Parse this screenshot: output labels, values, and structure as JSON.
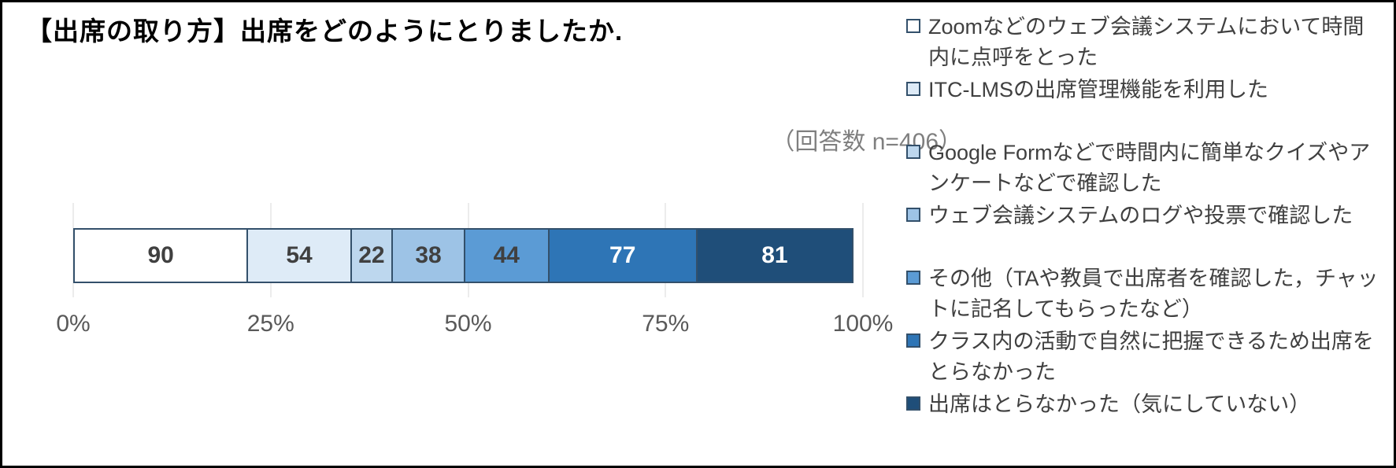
{
  "chart_data": {
    "type": "bar",
    "stacked": true,
    "orientation": "horizontal",
    "title": "【出席の取り方】出席をどのようにとりましたか.",
    "annotation": "（回答数 n=406）",
    "n_total": 406,
    "x_ticks": [
      "0%",
      "25%",
      "50%",
      "75%",
      "100%"
    ],
    "xlim_percent": [
      0,
      100
    ],
    "grid": true,
    "legend_position": "right",
    "segment_border_color": "#33506b",
    "gridline_color": "#d9d9d9",
    "tick_label_color": "#595959",
    "annotation_color": "#7f7f7f",
    "series": [
      {
        "name": "Zoomなどのウェブ会議システムにおいて時間内に点呼をとった",
        "value": 90,
        "fill": "#ffffff",
        "label_color": "#404040"
      },
      {
        "name": "ITC-LMSの出席管理機能を利用した",
        "value": 54,
        "fill": "#deebf7",
        "label_color": "#404040"
      },
      {
        "name": "Google Formなどで時間内に簡単なクイズやアンケートなどで確認した",
        "value": 22,
        "fill": "#bdd7ee",
        "label_color": "#404040"
      },
      {
        "name": "ウェブ会議システムのログや投票で確認した",
        "value": 38,
        "fill": "#9dc3e6",
        "label_color": "#404040"
      },
      {
        "name": "その他（TAや教員で出席者を確認した，チャットに記名してもらったなど）",
        "value": 44,
        "fill": "#5b9bd5",
        "label_color": "#404040"
      },
      {
        "name": "クラス内の活動で自然に把握できるため出席をとらなかった",
        "value": 77,
        "fill": "#2e75b6",
        "label_color": "#ffffff"
      },
      {
        "name": "出席はとらなかった（気にしていない）",
        "value": 81,
        "fill": "#1f4e79",
        "label_color": "#ffffff"
      }
    ]
  }
}
